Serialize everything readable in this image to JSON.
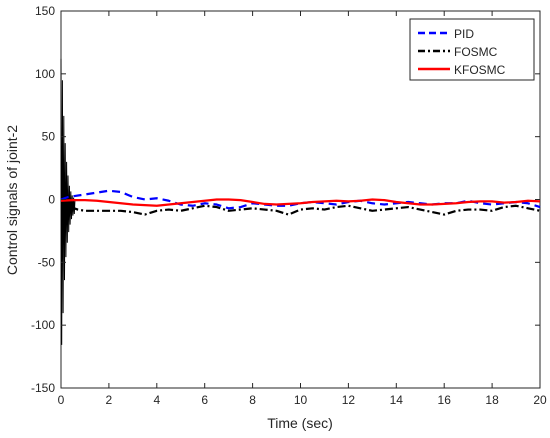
{
  "chart_data": {
    "type": "line",
    "title": "",
    "xlabel": "Time (sec)",
    "ylabel": "Control signals of joint-2",
    "xlim": [
      0,
      20
    ],
    "ylim": [
      -150,
      150
    ],
    "xticks": [
      "0",
      "2",
      "4",
      "6",
      "8",
      "10",
      "12",
      "14",
      "16",
      "18",
      "20"
    ],
    "yticks": [
      "-150",
      "-100",
      "-50",
      "0",
      "50",
      "100",
      "150"
    ],
    "grid": false,
    "legend_position": "top-right",
    "series": [
      {
        "name": "PID",
        "color": "#0000ff",
        "style": "dashed",
        "x": [
          0,
          0.3,
          1.0,
          1.5,
          2.0,
          2.5,
          3.0,
          3.5,
          4.0,
          4.5,
          5.0,
          5.5,
          6.0,
          6.5,
          7.0,
          7.5,
          8.0,
          8.5,
          9.0,
          9.5,
          10.0,
          10.5,
          11.0,
          11.5,
          12.0,
          12.5,
          13.0,
          13.5,
          14.0,
          14.5,
          15.0,
          15.5,
          16.0,
          16.5,
          17.0,
          17.5,
          18.0,
          18.5,
          19.0,
          19.5,
          20.0
        ],
        "y": [
          0,
          2,
          4,
          5.5,
          7,
          6,
          2,
          0,
          1,
          -1,
          -4,
          -5,
          -3,
          -4,
          -7,
          -6,
          -3,
          -4,
          -5,
          -5,
          -3,
          -2,
          -3,
          -4,
          -2,
          -1,
          -3,
          -4,
          -3,
          -2,
          -3,
          -4,
          -3,
          -3,
          -1,
          -3,
          -4,
          -3,
          -2,
          -3,
          -6
        ]
      },
      {
        "name": "FOSMC",
        "color": "#000000",
        "style": "dashdot",
        "x": [
          0.4,
          0.7,
          1.0,
          1.5,
          2.0,
          2.5,
          3.0,
          3.5,
          4.0,
          4.5,
          5.0,
          5.5,
          6.0,
          6.5,
          7.0,
          7.5,
          8.0,
          8.5,
          9.0,
          9.5,
          10.0,
          10.5,
          11.0,
          11.5,
          12.0,
          12.5,
          13.0,
          13.5,
          14.0,
          14.5,
          15.0,
          15.5,
          16.0,
          16.5,
          17.0,
          17.5,
          18.0,
          18.5,
          19.0,
          19.5,
          20.0
        ],
        "y": [
          -6,
          -8,
          -9,
          -9,
          -9,
          -9,
          -10,
          -12,
          -9,
          -8,
          -9,
          -7,
          -5,
          -6,
          -9,
          -8,
          -7,
          -8,
          -9,
          -12,
          -8,
          -7,
          -8,
          -6,
          -5,
          -7,
          -9,
          -8,
          -7,
          -6,
          -8,
          -10,
          -12,
          -9,
          -8,
          -8,
          -9,
          -6,
          -5,
          -7,
          -9
        ]
      },
      {
        "name": "KFOSMC",
        "color": "#ff0000",
        "style": "solid",
        "x": [
          0,
          0.5,
          1.0,
          1.5,
          2.0,
          2.5,
          3.0,
          3.5,
          4.0,
          4.5,
          5.0,
          5.5,
          6.0,
          6.5,
          7.0,
          7.5,
          8.0,
          8.5,
          9.0,
          9.5,
          10.0,
          10.5,
          11.0,
          11.5,
          12.0,
          12.5,
          13.0,
          13.5,
          14.0,
          14.5,
          15.0,
          15.5,
          16.0,
          16.5,
          17.0,
          17.5,
          18.0,
          18.5,
          19.0,
          19.5,
          20.0
        ],
        "y": [
          -1,
          -0.5,
          -0.5,
          -1,
          -2,
          -3,
          -4,
          -4.5,
          -5,
          -4,
          -3,
          -2,
          -1,
          0,
          0,
          -0.5,
          -2,
          -3.5,
          -4,
          -3.5,
          -3,
          -2,
          -1.5,
          -1,
          -1.5,
          -1,
          0,
          -0.5,
          -2,
          -3,
          -4,
          -4,
          -3.5,
          -3,
          -2,
          -1.5,
          -1.5,
          -2.5,
          -2,
          -1,
          -1.5
        ]
      },
      {
        "name": "",
        "color": "#000000",
        "style": "oscillation",
        "x_start": 0,
        "x_end": 0.6,
        "envelope": [
          [
            0,
            112
          ],
          [
            0.05,
            100
          ],
          [
            0.1,
            75
          ],
          [
            0.15,
            55
          ],
          [
            0.2,
            40
          ],
          [
            0.25,
            30
          ],
          [
            0.3,
            22
          ],
          [
            0.35,
            16
          ],
          [
            0.4,
            12
          ],
          [
            0.45,
            9
          ],
          [
            0.5,
            7
          ],
          [
            0.6,
            5
          ]
        ],
        "y_min": -123
      }
    ]
  }
}
